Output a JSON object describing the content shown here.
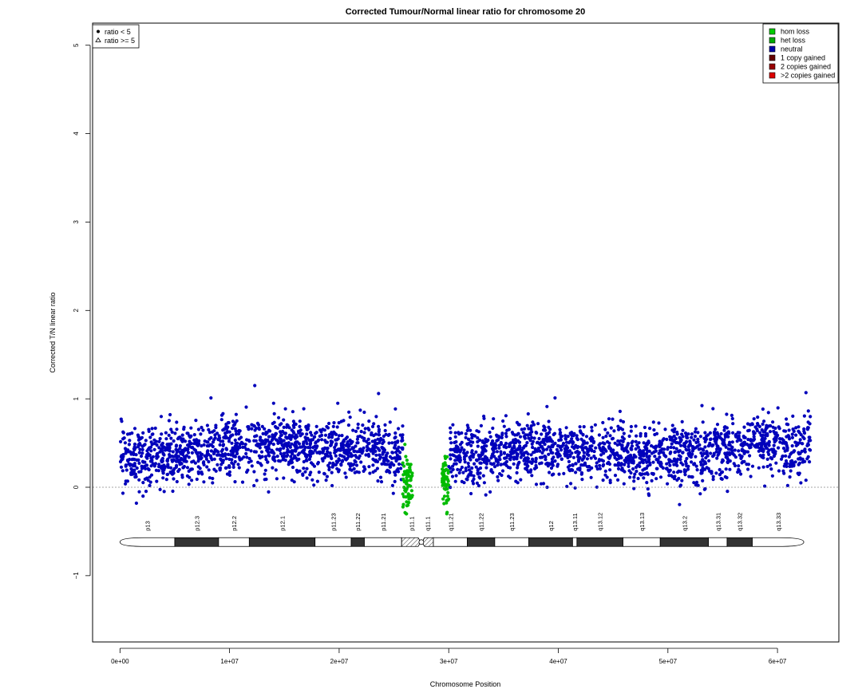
{
  "chart_data": {
    "type": "scatter",
    "title": "Corrected Tumour/Normal linear ratio for chromosome  20",
    "xlabel": "Chromosome Position",
    "ylabel": "Corrected T/N linear ratio",
    "xlim": [
      -2500000,
      65600000
    ],
    "ylim": [
      -1.75,
      5.25
    ],
    "x_ticks": [
      0,
      10000000,
      20000000,
      30000000,
      40000000,
      50000000,
      60000000
    ],
    "x_tick_labels": [
      "0e+00",
      "1e+07",
      "2e+07",
      "3e+07",
      "4e+07",
      "5e+07",
      "6e+07"
    ],
    "y_ticks": [
      -1,
      0,
      1,
      2,
      3,
      4,
      5
    ],
    "y_tick_labels": [
      "−1",
      "0",
      "1",
      "2",
      "3",
      "4",
      "5"
    ],
    "reference_line_y": 0,
    "marker_legend": [
      {
        "symbol": "circle",
        "label": "ratio < 5"
      },
      {
        "symbol": "triangle",
        "label": "ratio >= 5"
      }
    ],
    "state_legend": [
      {
        "label": "hom loss",
        "color": "#00cc00"
      },
      {
        "label": "het loss",
        "color": "#00aa00"
      },
      {
        "label": "neutral",
        "color": "#0000aa"
      },
      {
        "label": "1 copy gained",
        "color": "#660000"
      },
      {
        "label": "2 copies gained",
        "color": "#990000"
      },
      {
        "label": ">2 copies gained",
        "color": "#dd0000"
      }
    ],
    "series": [
      {
        "name": "neutral",
        "color": "#0000bb",
        "segments": [
          {
            "start": 0,
            "end": 25800000,
            "approx_points": 1300,
            "trend_x": [
              0,
              2000000,
              5000000,
              10000000,
              15000000,
              20000000,
              23000000,
              25800000
            ],
            "trend_y": [
              0.36,
              0.32,
              0.38,
              0.47,
              0.47,
              0.43,
              0.43,
              0.4
            ]
          },
          {
            "start": 30000000,
            "end": 63000000,
            "approx_points": 1600,
            "trend_x": [
              30000000,
              35000000,
              40000000,
              45000000,
              50000000,
              55000000,
              58000000,
              62000000,
              63000000
            ],
            "trend_y": [
              0.36,
              0.38,
              0.44,
              0.38,
              0.36,
              0.42,
              0.5,
              0.4,
              0.6
            ]
          }
        ],
        "spread_sd": 0.17
      },
      {
        "name": "het loss",
        "color": "#00bb00",
        "segments": [
          {
            "start": 25800000,
            "end": 26700000,
            "approx_points": 70,
            "mean": 0.05
          },
          {
            "start": 29400000,
            "end": 30000000,
            "approx_points": 60,
            "mean": 0.05
          }
        ],
        "spread_sd": 0.15
      }
    ],
    "notable_points": [
      {
        "x": 12300000,
        "y": 1.15
      },
      {
        "x": 23600000,
        "y": 1.06
      },
      {
        "x": 62600000,
        "y": 1.07
      },
      {
        "x": 39700000,
        "y": 1.01
      },
      {
        "x": 8300000,
        "y": 1.01
      },
      {
        "x": 1500000,
        "y": -0.18
      },
      {
        "x": 2100000,
        "y": -0.1
      }
    ],
    "ideogram": {
      "y": -0.62,
      "centromere_x": 27500000,
      "bands": [
        {
          "name": "p13",
          "start": 0,
          "end": 5000000,
          "stain": "gneg"
        },
        {
          "name": "p12.3",
          "start": 5000000,
          "end": 9000000,
          "stain": "gpos"
        },
        {
          "name": "p12.2",
          "start": 9000000,
          "end": 11800000,
          "stain": "gneg"
        },
        {
          "name": "p12.1",
          "start": 11800000,
          "end": 17800000,
          "stain": "gpos"
        },
        {
          "name": "p11.23",
          "start": 17800000,
          "end": 21100000,
          "stain": "gneg"
        },
        {
          "name": "p11.22",
          "start": 21100000,
          "end": 22300000,
          "stain": "gpos"
        },
        {
          "name": "p11.21",
          "start": 22300000,
          "end": 25700000,
          "stain": "gneg"
        },
        {
          "name": "p11.1",
          "start": 25700000,
          "end": 27500000,
          "stain": "acen"
        },
        {
          "name": "q11.1",
          "start": 27500000,
          "end": 28600000,
          "stain": "acen"
        },
        {
          "name": "q11.21",
          "start": 28600000,
          "end": 31700000,
          "stain": "gneg"
        },
        {
          "name": "q11.22",
          "start": 31700000,
          "end": 34200000,
          "stain": "gpos"
        },
        {
          "name": "q11.23",
          "start": 34200000,
          "end": 37300000,
          "stain": "gneg"
        },
        {
          "name": "q12",
          "start": 37300000,
          "end": 41300000,
          "stain": "gpos"
        },
        {
          "name": "q13.11",
          "start": 41300000,
          "end": 41700000,
          "stain": "gneg"
        },
        {
          "name": "q13.12",
          "start": 41700000,
          "end": 45900000,
          "stain": "gpos"
        },
        {
          "name": "q13.13",
          "start": 45900000,
          "end": 49300000,
          "stain": "gneg"
        },
        {
          "name": "q13.2",
          "start": 49300000,
          "end": 53700000,
          "stain": "gpos"
        },
        {
          "name": "q13.31",
          "start": 53700000,
          "end": 55400000,
          "stain": "gneg"
        },
        {
          "name": "q13.32",
          "start": 55400000,
          "end": 57700000,
          "stain": "gpos"
        },
        {
          "name": "q13.33",
          "start": 57700000,
          "end": 62400000,
          "stain": "gneg"
        }
      ]
    }
  }
}
